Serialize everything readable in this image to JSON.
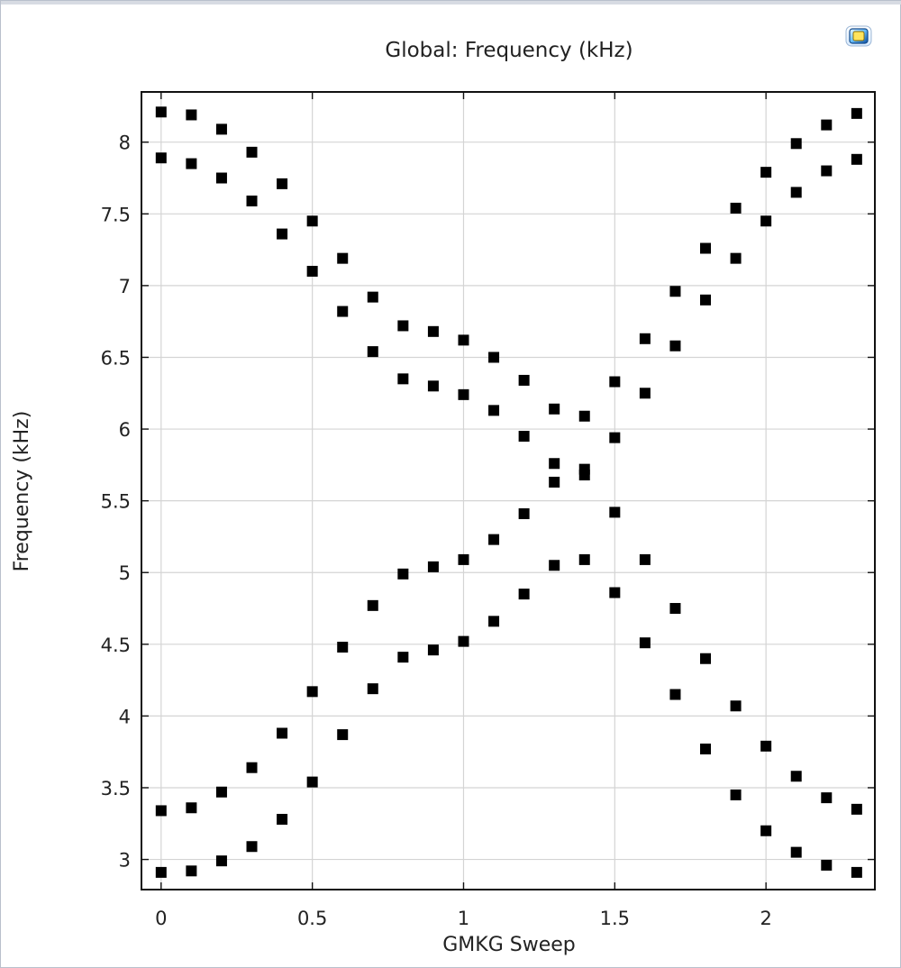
{
  "toolbar": {
    "icon": "plot-window-icon"
  },
  "chart_data": {
    "type": "scatter",
    "title": "Global: Frequency (kHz)",
    "xlabel": "GMKG Sweep",
    "ylabel": "Frequency (kHz)",
    "xlim": [
      -0.065,
      2.36
    ],
    "ylim": [
      2.79,
      8.35
    ],
    "x_ticks": [
      0,
      0.5,
      1,
      1.5,
      2
    ],
    "x_tick_labels": [
      "0",
      "0.5",
      "1",
      "1.5",
      "2"
    ],
    "y_ticks": [
      3,
      3.5,
      4,
      4.5,
      5,
      5.5,
      6,
      6.5,
      7,
      7.5,
      8
    ],
    "y_tick_labels": [
      "3",
      "3.5",
      "4",
      "4.5",
      "5",
      "5.5",
      "6",
      "6.5",
      "7",
      "7.5",
      "8"
    ],
    "grid": true,
    "marker": "square",
    "marker_color": "#000000",
    "x": [
      0,
      0.1,
      0.2,
      0.3,
      0.4,
      0.5,
      0.6,
      0.7,
      0.8,
      0.9,
      1.0,
      1.1,
      1.2,
      1.3,
      1.4,
      1.5,
      1.6,
      1.7,
      1.8,
      1.9,
      2.0,
      2.1,
      2.2,
      2.3
    ],
    "series": [
      {
        "values": [
          8.21,
          8.19,
          8.09,
          7.93,
          7.71,
          7.45,
          7.19,
          6.92,
          6.72,
          6.68,
          6.62,
          6.5,
          6.34,
          6.14,
          6.09,
          6.33,
          6.63,
          6.96,
          7.26,
          7.54,
          7.79,
          7.99,
          8.12,
          8.2
        ]
      },
      {
        "values": [
          7.89,
          7.85,
          7.75,
          7.59,
          7.36,
          7.1,
          6.82,
          6.54,
          6.35,
          6.3,
          6.24,
          6.13,
          5.95,
          5.76,
          5.72,
          5.94,
          6.25,
          6.58,
          6.9,
          7.19,
          7.45,
          7.65,
          7.8,
          7.88
        ]
      },
      {
        "values": [
          3.34,
          3.36,
          3.47,
          3.64,
          3.88,
          4.17,
          4.48,
          4.77,
          4.99,
          5.04,
          5.09,
          5.23,
          5.41,
          5.63,
          5.68,
          5.42,
          5.09,
          4.75,
          4.4,
          4.07,
          3.79,
          3.58,
          3.43,
          3.35
        ]
      },
      {
        "values": [
          2.91,
          2.92,
          2.99,
          3.09,
          3.28,
          3.54,
          3.87,
          4.19,
          4.41,
          4.46,
          4.52,
          4.66,
          4.85,
          5.05,
          5.09,
          4.86,
          4.51,
          4.15,
          3.77,
          3.45,
          3.2,
          3.05,
          2.96,
          2.91
        ]
      }
    ]
  }
}
